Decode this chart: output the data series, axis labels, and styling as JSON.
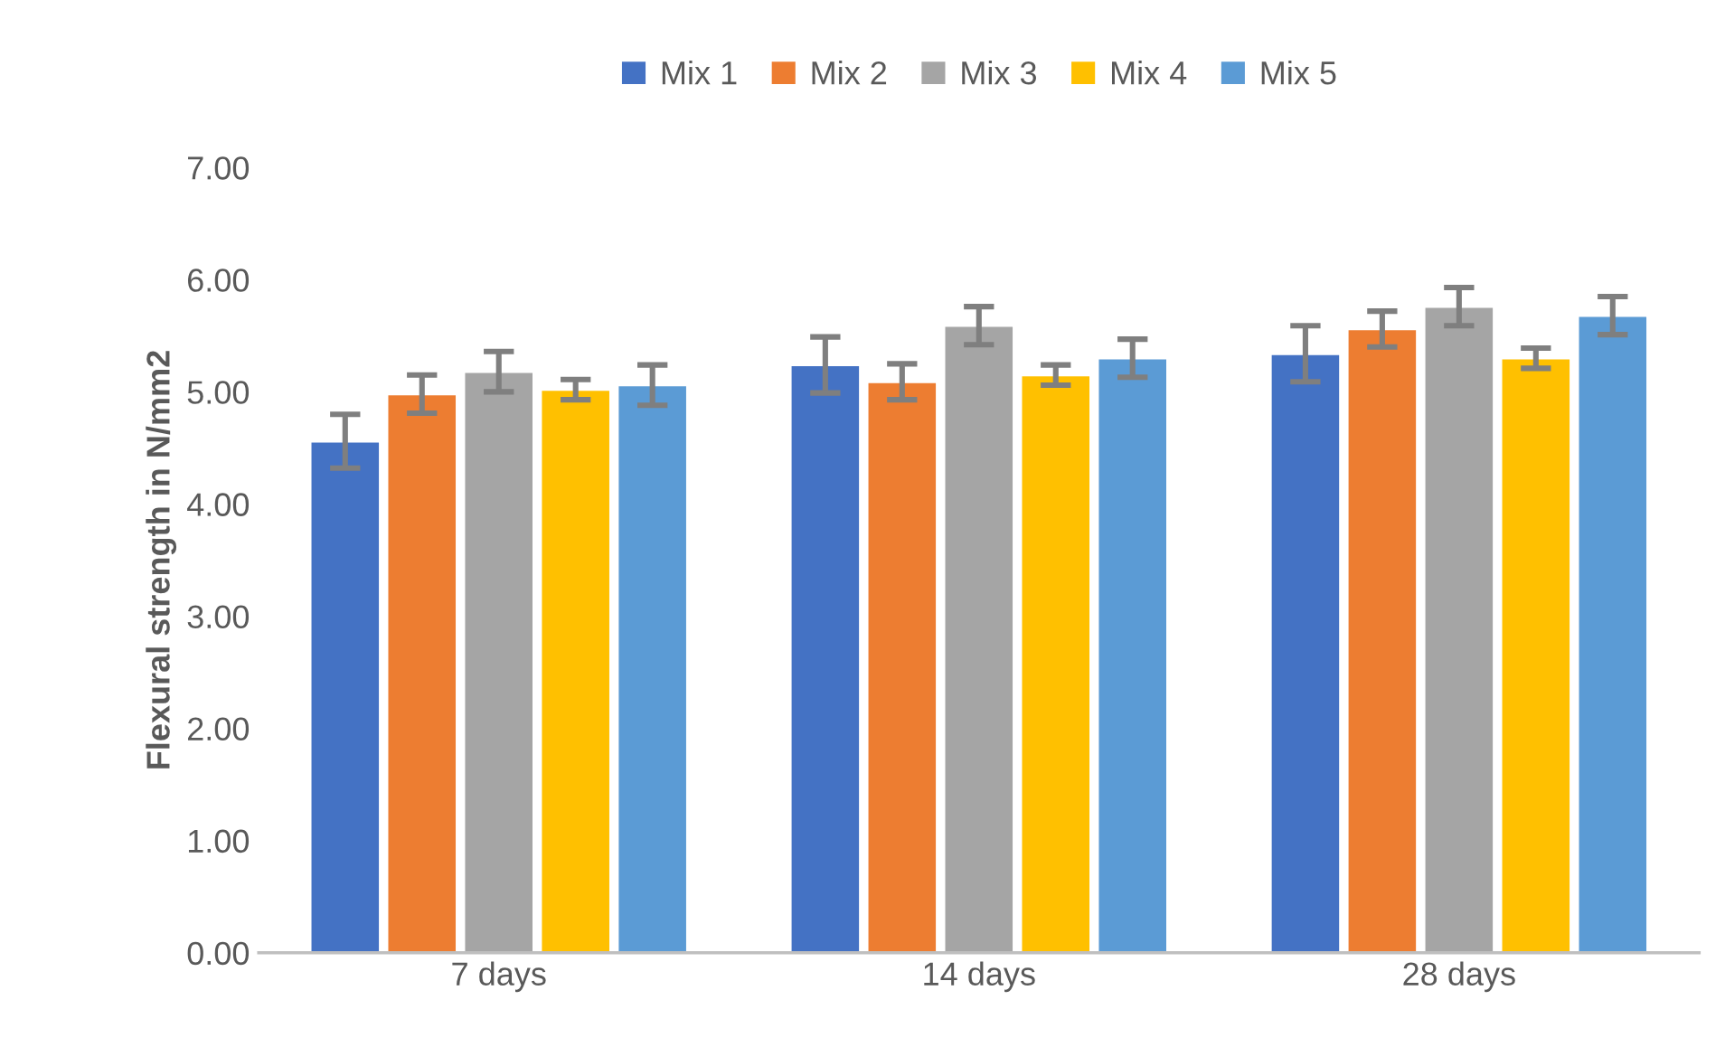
{
  "chart_data": {
    "type": "bar",
    "ylabel": "Flexural strength in N/mm2",
    "categories": [
      "7 days",
      "14 days",
      "28 days"
    ],
    "series": [
      {
        "name": "Mix 1",
        "color": "#4472c4",
        "values": [
          4.56,
          5.24,
          5.34
        ],
        "errors": [
          0.24,
          0.25,
          0.25
        ]
      },
      {
        "name": "Mix 2",
        "color": "#ed7d31",
        "values": [
          4.98,
          5.09,
          5.56
        ],
        "errors": [
          0.17,
          0.16,
          0.16
        ]
      },
      {
        "name": "Mix 3",
        "color": "#a5a5a5",
        "values": [
          5.18,
          5.59,
          5.76
        ],
        "errors": [
          0.18,
          0.17,
          0.17
        ]
      },
      {
        "name": "Mix 4",
        "color": "#ffc000",
        "values": [
          5.02,
          5.15,
          5.3
        ],
        "errors": [
          0.09,
          0.09,
          0.09
        ]
      },
      {
        "name": "Mix 5",
        "color": "#5b9bd5",
        "values": [
          5.06,
          5.3,
          5.68
        ],
        "errors": [
          0.18,
          0.17,
          0.17
        ]
      }
    ],
    "ylim": [
      0,
      7
    ],
    "yticks": [
      {
        "value": 0,
        "label": "0.00"
      },
      {
        "value": 1,
        "label": "1.00"
      },
      {
        "value": 2,
        "label": "2.00"
      },
      {
        "value": 3,
        "label": "3.00"
      },
      {
        "value": 4,
        "label": "4.00"
      },
      {
        "value": 5,
        "label": "5.00"
      },
      {
        "value": 6,
        "label": "6.00"
      },
      {
        "value": 7,
        "label": "7.00"
      }
    ],
    "grid": false,
    "legend": "top"
  }
}
